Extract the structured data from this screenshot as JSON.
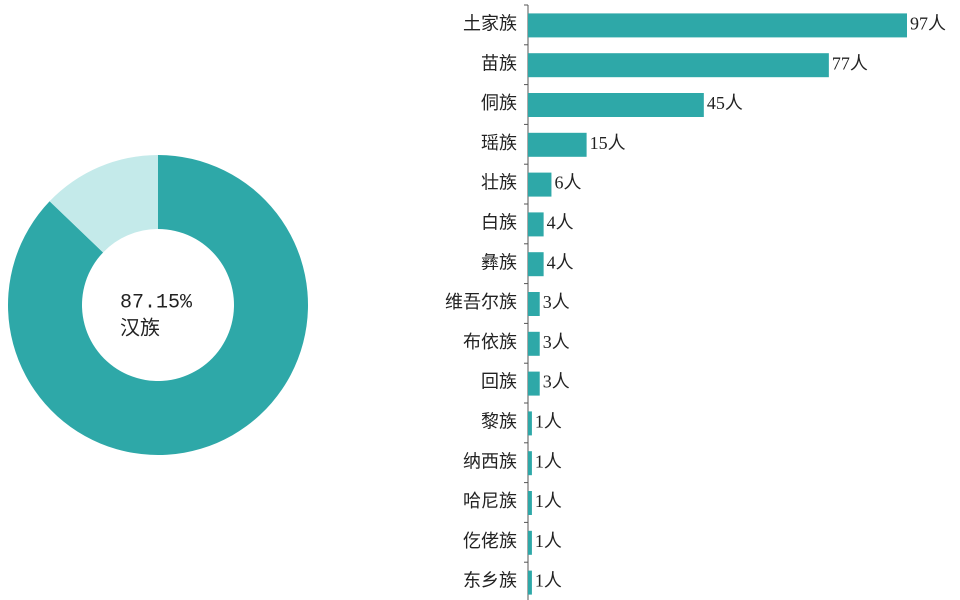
{
  "chart_data": [
    {
      "type": "pie",
      "categories": [
        "汉族",
        null
      ],
      "values": [
        87.15,
        12.85
      ],
      "value_labels": [
        "87.15%",
        null
      ],
      "colors": [
        "#2ea8a8",
        "#c4eaea"
      ],
      "donut": true
    },
    {
      "type": "bar",
      "orientation": "horizontal",
      "color": "#2ea8a8",
      "categories": [
        "土家族",
        "苗族",
        "侗族",
        "瑶族",
        "壮族",
        "白族",
        "彝族",
        "维吾尔族",
        "布依族",
        "回族",
        "黎族",
        "纳西族",
        "哈尼族",
        "仡佬族",
        "东乡族"
      ],
      "values": [
        97,
        77,
        45,
        15,
        6,
        4,
        4,
        3,
        3,
        3,
        1,
        1,
        1,
        1,
        1
      ],
      "value_labels": [
        "97人",
        "77人",
        "45人",
        "15人",
        "6人",
        "4人",
        "4人",
        "3人",
        "3人",
        "3人",
        "1人",
        "1人",
        "1人",
        "1人",
        "1人"
      ]
    }
  ]
}
